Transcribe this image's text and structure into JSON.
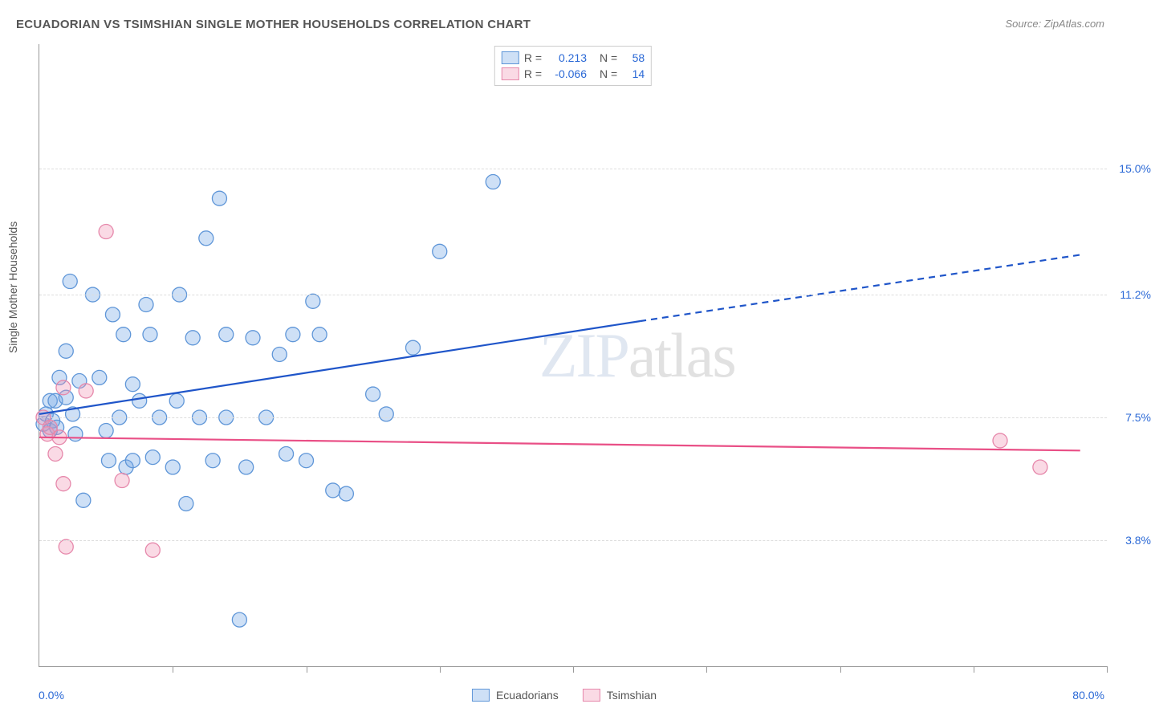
{
  "title": "ECUADORIAN VS TSIMSHIAN SINGLE MOTHER HOUSEHOLDS CORRELATION CHART",
  "source": "Source: ZipAtlas.com",
  "y_axis_title": "Single Mother Households",
  "watermark_a": "ZIP",
  "watermark_b": "atlas",
  "chart": {
    "type": "scatter",
    "background_color": "#ffffff",
    "grid_color": "#dddddd",
    "axis_color": "#999999",
    "text_color": "#555555",
    "value_color": "#2b69d6",
    "xlim": [
      0,
      80
    ],
    "ylim": [
      0,
      18.75
    ],
    "y_ticks": [
      3.8,
      7.5,
      11.2,
      15.0
    ],
    "y_tick_labels": [
      "3.8%",
      "7.5%",
      "11.2%",
      "15.0%"
    ],
    "x_ticks": [
      0,
      10,
      20,
      30,
      40,
      50,
      60,
      70,
      80
    ],
    "x_left_label": "0.0%",
    "x_right_label": "80.0%",
    "marker_radius": 9,
    "marker_stroke_width": 1.3,
    "trend_line_width": 2.2
  },
  "series": [
    {
      "name": "Ecuadorians",
      "fill": "rgba(115,165,230,0.35)",
      "stroke": "#5f96d8",
      "line_color": "#1f55c9",
      "R": "0.213",
      "N": "58",
      "trend": {
        "x1": 0,
        "y1": 7.6,
        "x2_solid": 45,
        "y2_solid": 10.4,
        "x2_dash": 78,
        "y2_dash": 12.4
      },
      "points": [
        [
          0.3,
          7.3
        ],
        [
          0.5,
          7.6
        ],
        [
          0.8,
          7.1
        ],
        [
          0.8,
          8.0
        ],
        [
          1.0,
          7.4
        ],
        [
          1.2,
          8.0
        ],
        [
          1.3,
          7.2
        ],
        [
          1.5,
          8.7
        ],
        [
          2.0,
          8.1
        ],
        [
          2.0,
          9.5
        ],
        [
          2.3,
          11.6
        ],
        [
          2.5,
          7.6
        ],
        [
          2.7,
          7.0
        ],
        [
          3.0,
          8.6
        ],
        [
          3.3,
          5.0
        ],
        [
          4.0,
          11.2
        ],
        [
          4.5,
          8.7
        ],
        [
          5.0,
          7.1
        ],
        [
          5.2,
          6.2
        ],
        [
          5.5,
          10.6
        ],
        [
          6.0,
          7.5
        ],
        [
          6.3,
          10.0
        ],
        [
          6.5,
          6.0
        ],
        [
          7.0,
          8.5
        ],
        [
          7.0,
          6.2
        ],
        [
          7.5,
          8.0
        ],
        [
          8.0,
          10.9
        ],
        [
          8.3,
          10.0
        ],
        [
          8.5,
          6.3
        ],
        [
          9.0,
          7.5
        ],
        [
          10.0,
          6.0
        ],
        [
          10.3,
          8.0
        ],
        [
          10.5,
          11.2
        ],
        [
          11.0,
          4.9
        ],
        [
          11.5,
          9.9
        ],
        [
          12.0,
          7.5
        ],
        [
          12.5,
          12.9
        ],
        [
          13.0,
          6.2
        ],
        [
          13.5,
          14.1
        ],
        [
          14.0,
          7.5
        ],
        [
          14.0,
          10.0
        ],
        [
          15.0,
          1.4
        ],
        [
          15.5,
          6.0
        ],
        [
          16.0,
          9.9
        ],
        [
          17.0,
          7.5
        ],
        [
          18.0,
          9.4
        ],
        [
          18.5,
          6.4
        ],
        [
          19.0,
          10.0
        ],
        [
          20.0,
          6.2
        ],
        [
          20.5,
          11.0
        ],
        [
          21.0,
          10.0
        ],
        [
          22.0,
          5.3
        ],
        [
          23.0,
          5.2
        ],
        [
          25.0,
          8.2
        ],
        [
          26.0,
          7.6
        ],
        [
          28.0,
          9.6
        ],
        [
          30.0,
          12.5
        ],
        [
          34.0,
          14.6
        ]
      ]
    },
    {
      "name": "Tsimshian",
      "fill": "rgba(240,150,180,0.35)",
      "stroke": "#e688ab",
      "line_color": "#e94f86",
      "R": "-0.066",
      "N": "14",
      "trend": {
        "x1": 0,
        "y1": 6.9,
        "x2_solid": 78,
        "y2_solid": 6.5,
        "x2_dash": 78,
        "y2_dash": 6.5
      },
      "points": [
        [
          0.3,
          7.5
        ],
        [
          0.6,
          7.0
        ],
        [
          0.8,
          7.2
        ],
        [
          1.2,
          6.4
        ],
        [
          1.5,
          6.9
        ],
        [
          1.8,
          8.4
        ],
        [
          1.8,
          5.5
        ],
        [
          2.0,
          3.6
        ],
        [
          3.5,
          8.3
        ],
        [
          5.0,
          13.1
        ],
        [
          6.2,
          5.6
        ],
        [
          8.5,
          3.5
        ],
        [
          72.0,
          6.8
        ],
        [
          75.0,
          6.0
        ]
      ]
    }
  ],
  "legend_top": {
    "rows": [
      {
        "swatch_fill": "rgba(115,165,230,0.35)",
        "swatch_stroke": "#5f96d8",
        "r_label": "R =",
        "r_val": "0.213",
        "n_label": "N =",
        "n_val": "58"
      },
      {
        "swatch_fill": "rgba(240,150,180,0.35)",
        "swatch_stroke": "#e688ab",
        "r_label": "R =",
        "r_val": "-0.066",
        "n_label": "N =",
        "n_val": "14"
      }
    ]
  },
  "legend_bottom": {
    "items": [
      {
        "label": "Ecuadorians",
        "fill": "rgba(115,165,230,0.35)",
        "stroke": "#5f96d8"
      },
      {
        "label": "Tsimshian",
        "fill": "rgba(240,150,180,0.35)",
        "stroke": "#e688ab"
      }
    ]
  }
}
